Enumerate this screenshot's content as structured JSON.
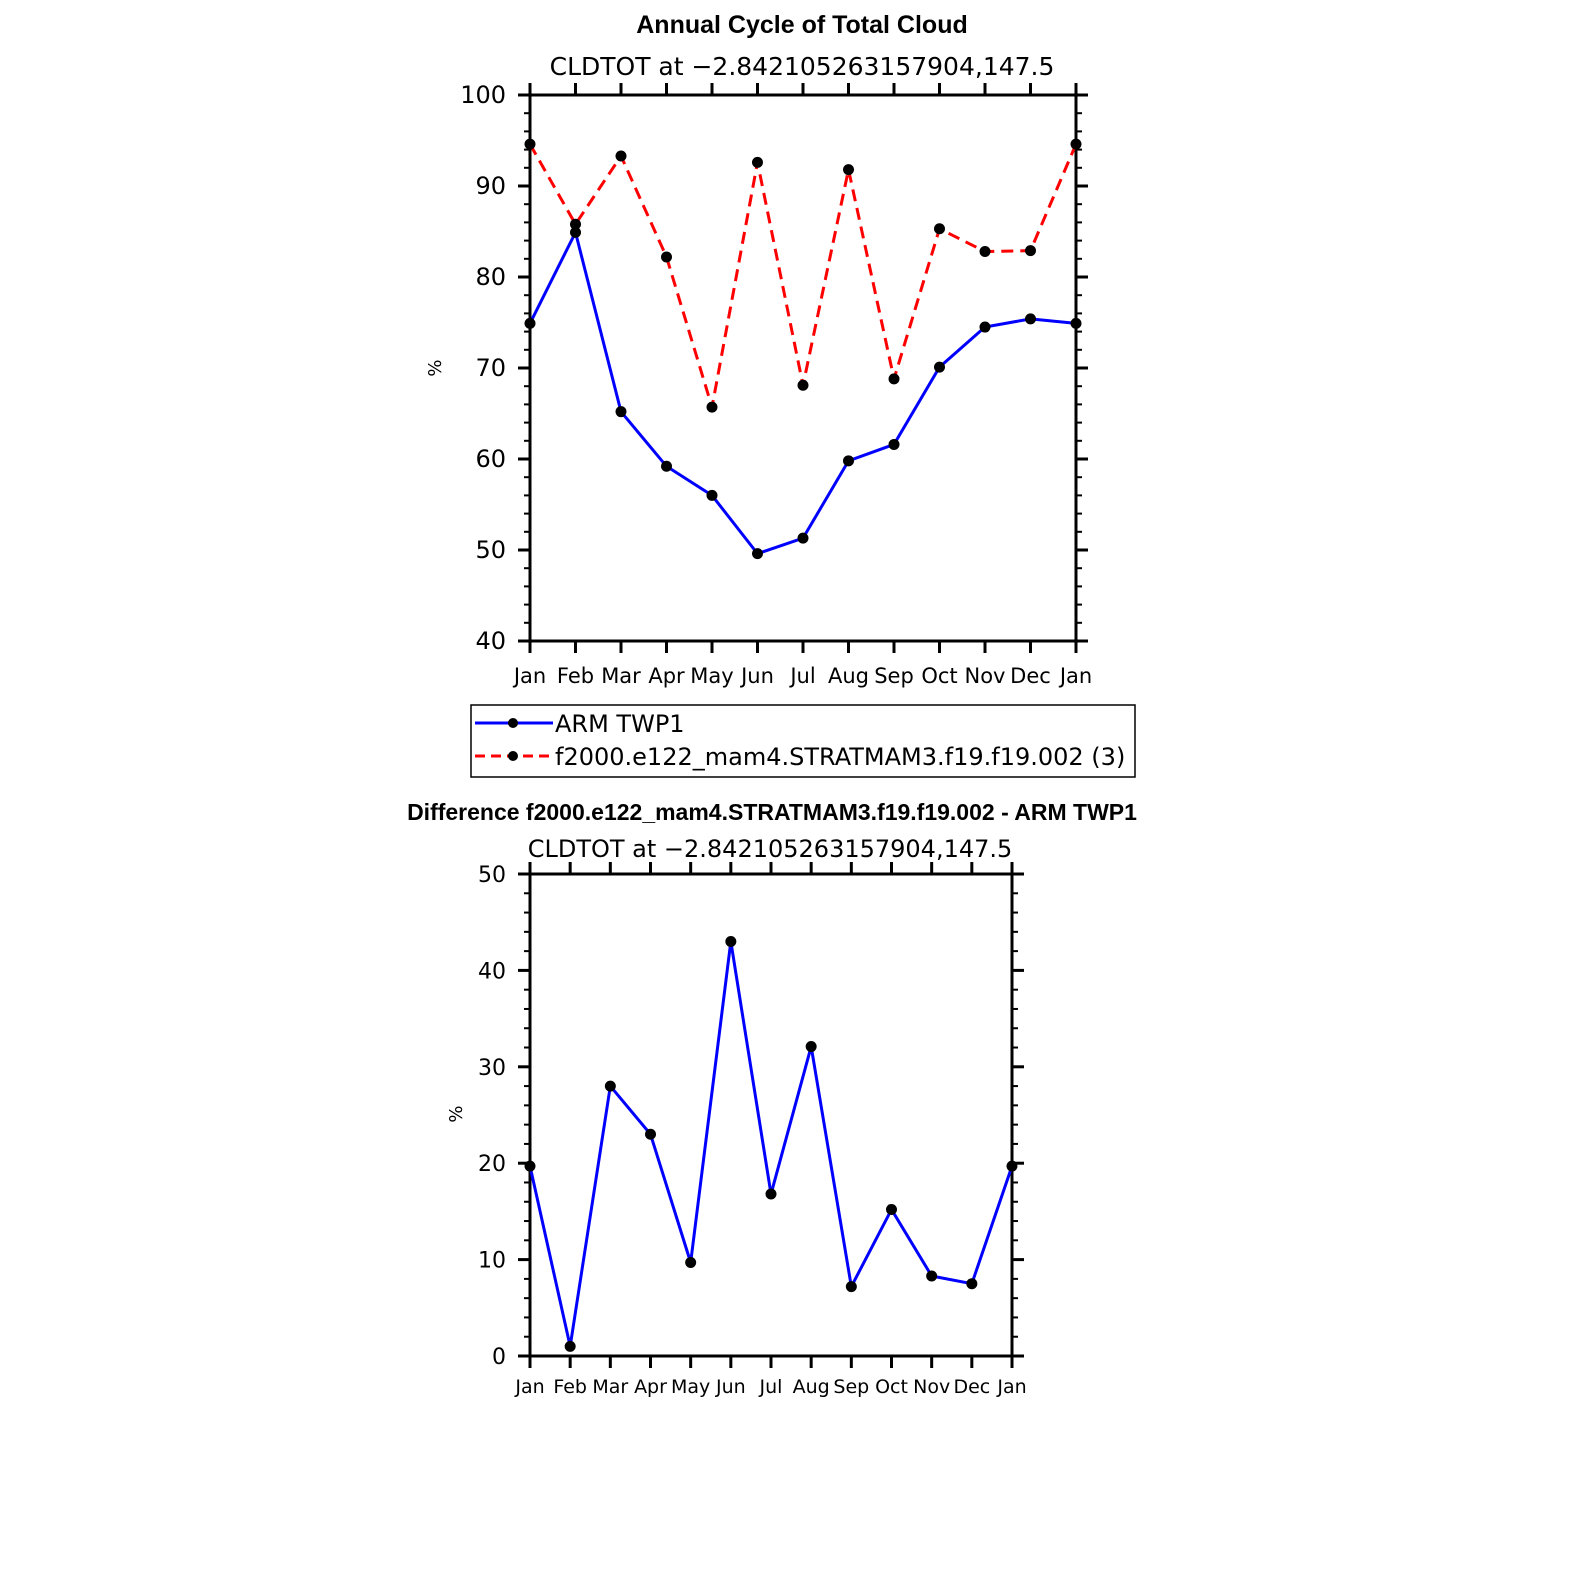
{
  "chart_data": [
    {
      "type": "line",
      "title": "Annual Cycle of Total Cloud",
      "subtitle": "CLDTOT at −2.842105263157904,147.5",
      "xlabel": "",
      "ylabel": "%",
      "categories": [
        "Jan",
        "Feb",
        "Mar",
        "Apr",
        "May",
        "Jun",
        "Jul",
        "Aug",
        "Sep",
        "Oct",
        "Nov",
        "Dec",
        "Jan"
      ],
      "ylim": [
        40,
        100
      ],
      "yticks": [
        40,
        50,
        60,
        70,
        80,
        90,
        100
      ],
      "grid": false,
      "legend_position": "below",
      "series": [
        {
          "name": "ARM TWP1",
          "color": "#0000ff",
          "dash": "solid",
          "values": [
            74.9,
            84.9,
            65.2,
            59.2,
            56.0,
            49.6,
            51.3,
            59.8,
            61.6,
            70.1,
            74.5,
            75.4,
            74.9
          ]
        },
        {
          "name": "f2000.e122_mam4.STRATMAM3.f19.f19.002 (3)",
          "color": "#ff0000",
          "dash": "dashed",
          "values": [
            94.6,
            85.8,
            93.3,
            82.2,
            65.7,
            92.6,
            68.1,
            91.8,
            68.8,
            85.3,
            82.8,
            82.9,
            94.6
          ]
        }
      ]
    },
    {
      "type": "line",
      "title": "Difference f2000.e122_mam4.STRATMAM3.f19.f19.002 - ARM TWP1",
      "subtitle": "CLDTOT at −2.842105263157904,147.5",
      "xlabel": "",
      "ylabel": "%",
      "categories": [
        "Jan",
        "Feb",
        "Mar",
        "Apr",
        "May",
        "Jun",
        "Jul",
        "Aug",
        "Sep",
        "Oct",
        "Nov",
        "Dec",
        "Jan"
      ],
      "ylim": [
        0,
        50
      ],
      "yticks": [
        0,
        10,
        20,
        30,
        40,
        50
      ],
      "grid": false,
      "series": [
        {
          "name": "Difference",
          "color": "#0000ff",
          "dash": "solid",
          "values": [
            19.7,
            1.0,
            28.0,
            23.0,
            9.7,
            43.0,
            16.8,
            32.1,
            7.2,
            15.2,
            8.3,
            7.5,
            19.7
          ]
        }
      ]
    }
  ]
}
